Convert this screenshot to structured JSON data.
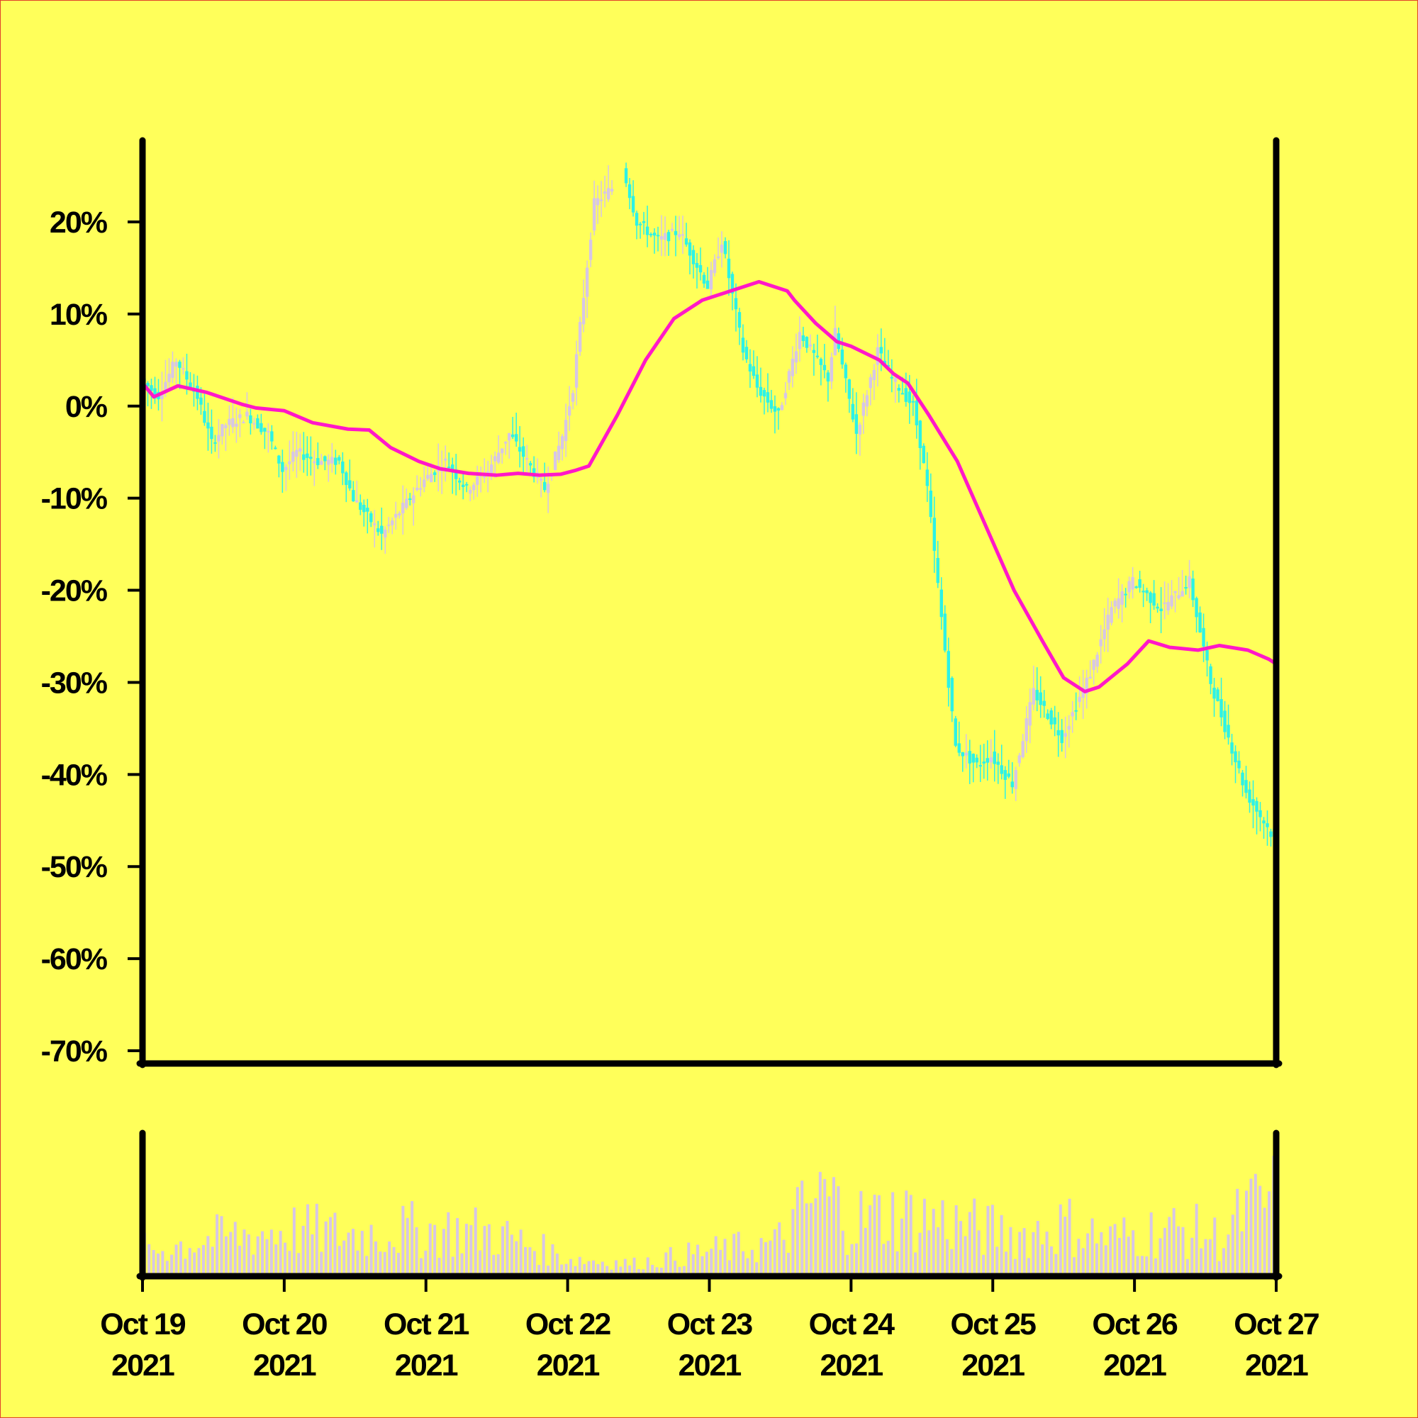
{
  "chart_data": {
    "type": "candlestick",
    "title": "",
    "xlabel": "",
    "ylabel": "",
    "ylim": [
      -70,
      27
    ],
    "y_unit": "%",
    "y_ticks": [
      "20%",
      "10%",
      "0%",
      "-10%",
      "-20%",
      "-30%",
      "-40%",
      "-50%",
      "-60%",
      "-70%"
    ],
    "y_tick_values": [
      20,
      10,
      0,
      -10,
      -20,
      -30,
      -40,
      -50,
      -60,
      -70
    ],
    "x_range": [
      "2021-10-19",
      "2021-10-27"
    ],
    "x_ticks": [
      {
        "date": "2021-10-19",
        "line1": "Oct 19",
        "line2": "2021"
      },
      {
        "date": "2021-10-20",
        "line1": "Oct 20",
        "line2": "2021"
      },
      {
        "date": "2021-10-21",
        "line1": "Oct 21",
        "line2": "2021"
      },
      {
        "date": "2021-10-22",
        "line1": "Oct 22",
        "line2": "2021"
      },
      {
        "date": "2021-10-23",
        "line1": "Oct 23",
        "line2": "2021"
      },
      {
        "date": "2021-10-24",
        "line1": "Oct 24",
        "line2": "2021"
      },
      {
        "date": "2021-10-25",
        "line1": "Oct 25",
        "line2": "2021"
      },
      {
        "date": "2021-10-26",
        "line1": "Oct 26",
        "line2": "2021"
      },
      {
        "date": "2021-10-27",
        "line1": "Oct 27",
        "line2": "2021"
      }
    ],
    "price_path_days": [
      0,
      0.12,
      0.25,
      0.4,
      0.5,
      0.6,
      0.75,
      0.9,
      1.0,
      1.1,
      1.25,
      1.4,
      1.5,
      1.7,
      1.85,
      2.0,
      2.15,
      2.3,
      2.45,
      2.6,
      2.85,
      2.98,
      3.05,
      3.2,
      3.35,
      3.4,
      3.5,
      3.65,
      3.8,
      4.0,
      4.1,
      4.25,
      4.35,
      4.5,
      4.65,
      4.85,
      4.9,
      5.05,
      5.2,
      5.3,
      5.45,
      5.5,
      5.55,
      5.75,
      5.9,
      6.0,
      6.15,
      6.3,
      6.5,
      6.7,
      6.85,
      7.0,
      7.2,
      7.4,
      7.55,
      7.8,
      8.0
    ],
    "price_path_pct": [
      3,
      1,
      5,
      1,
      -4,
      -2,
      -1,
      -3,
      -7,
      -5,
      -6,
      -6,
      -10,
      -14,
      -11,
      -8,
      -6,
      -9,
      -7,
      -3,
      -9,
      -3,
      2,
      22,
      24,
      26,
      20,
      18,
      19,
      13,
      18,
      6,
      2,
      -1,
      8,
      3,
      8,
      -3,
      6,
      3,
      0,
      -4,
      -9,
      -37,
      -39,
      -38,
      -41,
      -31,
      -36,
      -29,
      -22,
      -19,
      -22,
      -19,
      -30,
      -42,
      -47
    ],
    "moving_average_days": [
      0,
      0.08,
      0.25,
      0.45,
      0.7,
      0.8,
      1.0,
      1.2,
      1.45,
      1.6,
      1.75,
      1.95,
      2.1,
      2.3,
      2.5,
      2.65,
      2.8,
      2.95,
      3.05,
      3.15,
      3.35,
      3.55,
      3.75,
      3.95,
      4.15,
      4.35,
      4.55,
      4.6,
      4.75,
      4.9,
      5.0,
      5.2,
      5.3,
      5.4,
      5.55,
      5.75,
      5.95,
      6.15,
      6.35,
      6.5,
      6.65,
      6.75,
      6.95,
      7.1,
      7.25,
      7.45,
      7.6,
      7.8,
      7.95,
      8.0
    ],
    "moving_average_pct": [
      2.5,
      1,
      2.2,
      1.5,
      0.2,
      -0.2,
      -0.5,
      -1.8,
      -2.5,
      -2.6,
      -4.5,
      -6,
      -6.8,
      -7.3,
      -7.5,
      -7.3,
      -7.5,
      -7.4,
      -7,
      -6.5,
      -1,
      5,
      9.5,
      11.5,
      12.5,
      13.5,
      12.5,
      11.5,
      9,
      7,
      6.5,
      5,
      3.5,
      2.5,
      -1,
      -6,
      -13,
      -20,
      -25.5,
      -29.5,
      -31,
      -30.5,
      -28,
      -25.5,
      -26.2,
      -26.5,
      -26,
      -26.5,
      -27.5,
      -28
    ],
    "volume_scale_max": 1,
    "volume_days": [
      0.1,
      0.45,
      1.0,
      1.45,
      1.95,
      2.45,
      3.0,
      3.45,
      3.95,
      4.45,
      4.55,
      4.65,
      4.8,
      5.0,
      5.3,
      5.6,
      5.9,
      6.2,
      6.5,
      6.8,
      7.2,
      7.45,
      7.6,
      7.75,
      7.95
    ],
    "volume_levels": [
      0.25,
      0.35,
      0.45,
      0.4,
      0.45,
      0.42,
      0.15,
      0.1,
      0.22,
      0.3,
      0.45,
      0.65,
      0.8,
      0.55,
      0.6,
      0.55,
      0.45,
      0.4,
      0.5,
      0.35,
      0.45,
      0.42,
      0.35,
      0.6,
      0.75
    ],
    "colors": {
      "background": "#ffff5a",
      "candle_body": "#d6c6e6",
      "candle_up": "#2cf2e6",
      "moving_average": "#ff18c8",
      "volume": "#d6c6e6",
      "axis": "#000000",
      "frame": "#e0402a"
    }
  }
}
